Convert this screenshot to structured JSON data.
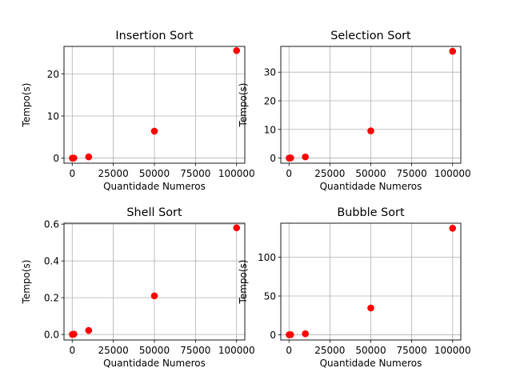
{
  "chart_data": [
    {
      "type": "scatter",
      "title": "Insertion Sort",
      "xlabel": "Quantidade Numeros",
      "ylabel": "Tempo(s)",
      "xlim": [
        -5000,
        105000
      ],
      "ylim": [
        -1.2,
        26.5
      ],
      "xticks": [
        0,
        25000,
        50000,
        75000,
        100000
      ],
      "yticks": [
        0,
        10,
        20
      ],
      "grid": true,
      "color": "#ff0000",
      "x": [
        100,
        1000,
        10000,
        50000,
        100000
      ],
      "y": [
        0.0,
        0.03,
        0.3,
        6.4,
        25.5
      ]
    },
    {
      "type": "scatter",
      "title": "Selection Sort",
      "xlabel": "Quantidade Numeros",
      "ylabel": "Tempo(s)",
      "xlim": [
        -5000,
        105000
      ],
      "ylim": [
        -1.8,
        39.0
      ],
      "xticks": [
        0,
        25000,
        50000,
        75000,
        100000
      ],
      "yticks": [
        0,
        10,
        20,
        30
      ],
      "grid": true,
      "color": "#ff0000",
      "x": [
        100,
        1000,
        10000,
        50000,
        100000
      ],
      "y": [
        0.0,
        0.04,
        0.4,
        9.5,
        37.3
      ]
    },
    {
      "type": "scatter",
      "title": "Shell Sort",
      "xlabel": "Quantidade Numeros",
      "ylabel": "Tempo(s)",
      "xlim": [
        -5000,
        105000
      ],
      "ylim": [
        -0.03,
        0.605
      ],
      "xticks": [
        0,
        25000,
        50000,
        75000,
        100000
      ],
      "yticks": [
        0.0,
        0.2,
        0.4,
        0.6
      ],
      "ytick_decimals": 1,
      "grid": true,
      "color": "#ff0000",
      "x": [
        100,
        1000,
        10000,
        50000,
        100000
      ],
      "y": [
        0.0,
        0.002,
        0.022,
        0.21,
        0.58
      ]
    },
    {
      "type": "scatter",
      "title": "Bubble Sort",
      "xlabel": "Quantidade Numeros",
      "ylabel": "Tempo(s)",
      "xlim": [
        -5000,
        105000
      ],
      "ylim": [
        -6.8,
        144.0
      ],
      "xticks": [
        0,
        25000,
        50000,
        75000,
        100000
      ],
      "yticks": [
        0,
        50,
        100
      ],
      "grid": true,
      "color": "#ff0000",
      "x": [
        100,
        1000,
        10000,
        50000,
        100000
      ],
      "y": [
        0.0,
        0.1,
        1.3,
        34.5,
        137.5
      ]
    }
  ]
}
